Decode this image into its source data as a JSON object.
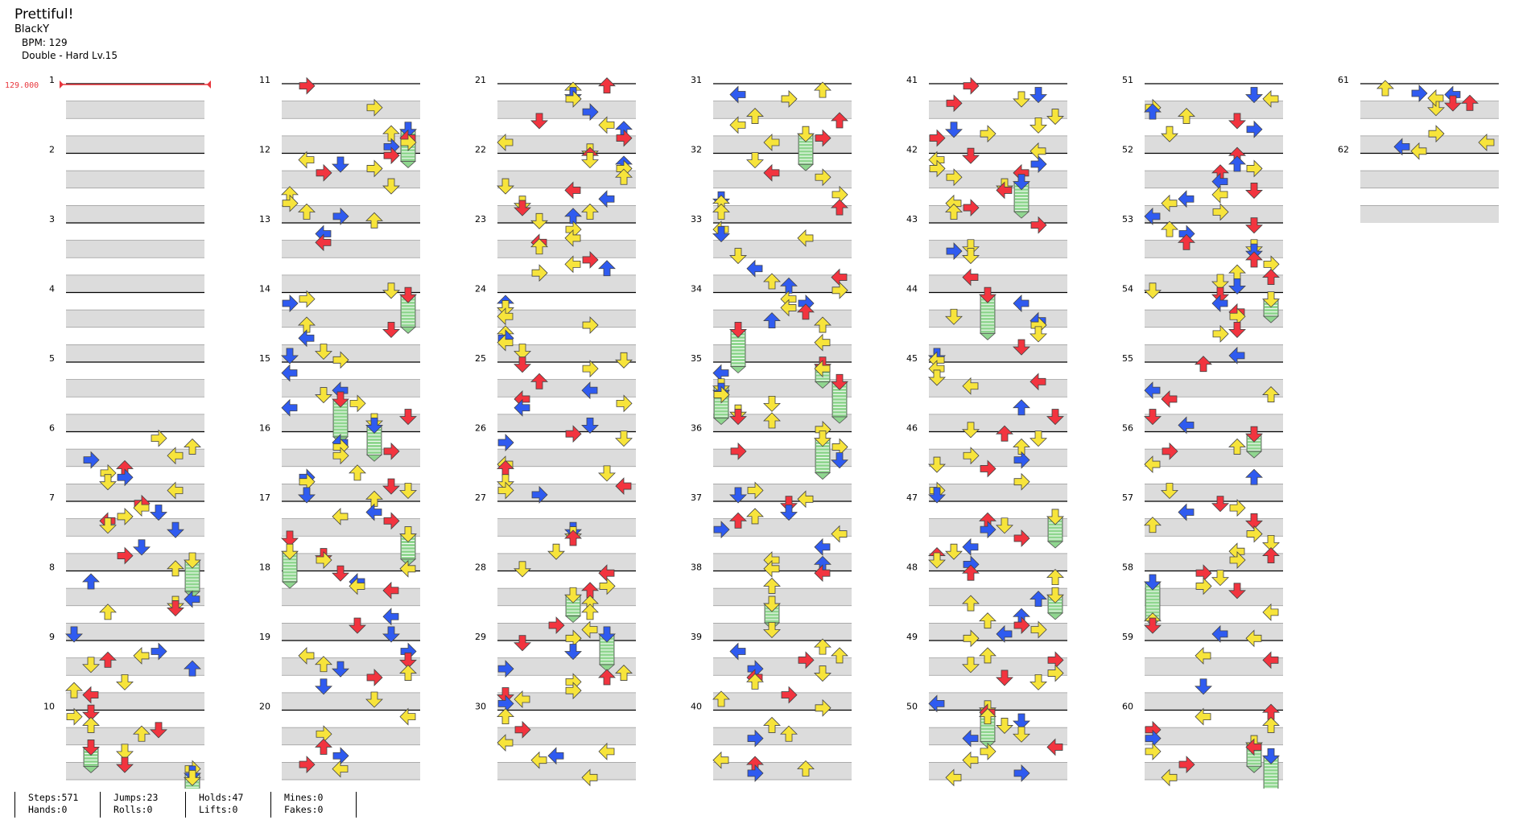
{
  "song": {
    "title": "Prettiful!",
    "artist": "BlackY",
    "bpm_text": "BPM: 129",
    "difficulty_text": "Double - Hard  Lv.15"
  },
  "bpm_marker": "129.000",
  "measure_numbers": [
    "1",
    "2",
    "3",
    "4",
    "5",
    "6",
    "7",
    "8",
    "9",
    "10",
    "11",
    "12",
    "13",
    "14",
    "15",
    "16",
    "17",
    "18",
    "19",
    "20",
    "21",
    "22",
    "23",
    "24",
    "25",
    "26",
    "27",
    "28",
    "29",
    "30",
    "31",
    "32",
    "33",
    "34",
    "35",
    "36",
    "37",
    "38",
    "39",
    "40",
    "41",
    "42",
    "43",
    "44",
    "45",
    "46",
    "47",
    "48",
    "49",
    "50",
    "51",
    "52",
    "53",
    "54",
    "55",
    "56",
    "57",
    "58",
    "59",
    "60",
    "61",
    "62"
  ],
  "stats": [
    {
      "top": "Steps:571",
      "bottom": "Hands:0"
    },
    {
      "top": "Jumps:23",
      "bottom": "Rolls:0"
    },
    {
      "top": "Holds:47",
      "bottom": "Lifts:0"
    },
    {
      "top": "Mines:0",
      "bottom": "Fakes:0"
    }
  ],
  "colors": {
    "background": "#ffffff",
    "lane_band": "#dcdcdc",
    "measure_line": "#000000",
    "beat_line": "#999999",
    "bpm_marker": "#e8373d",
    "quarter_note": "#f2343f",
    "eighth_note": "#2f5bf0",
    "sixteenth_note": "#f7e43b",
    "hold_body": "#8fd68f"
  },
  "icons": {
    "note": "arrow-note-icon",
    "hold": "hold-note-icon"
  }
}
